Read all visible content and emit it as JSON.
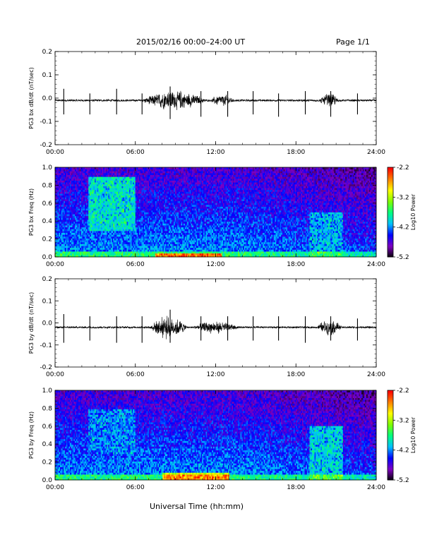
{
  "header": {
    "title": "2015/02/16  00:00–24:00 UT",
    "page": "Page 1/1"
  },
  "xaxis_title": "Universal Time (hh:mm)",
  "chart_data": [
    {
      "type": "line",
      "ylabel": "PG3 bx dB/dt (nT/sec)",
      "xlim": [
        0,
        24
      ],
      "ylim": [
        -0.2,
        0.2
      ],
      "x_ticks": [
        "00:00",
        "06:00",
        "12:00",
        "18:00",
        "24:00"
      ],
      "y_ticks": [
        "0.2",
        "0.1",
        "0.0",
        "-0.1",
        "-0.2"
      ],
      "baseline": -0.01,
      "spikes": [
        {
          "t": 0.65,
          "up": 0.04,
          "down": -0.07
        },
        {
          "t": 2.6,
          "up": 0.02,
          "down": -0.07
        },
        {
          "t": 4.6,
          "up": 0.04,
          "down": -0.07
        },
        {
          "t": 6.5,
          "up": 0.02,
          "down": -0.07
        },
        {
          "t": 8.6,
          "up": 0.05,
          "down": -0.09
        },
        {
          "t": 10.9,
          "up": 0.03,
          "down": -0.08
        },
        {
          "t": 12.9,
          "up": 0.03,
          "down": -0.08
        },
        {
          "t": 14.8,
          "up": 0.03,
          "down": -0.07
        },
        {
          "t": 16.7,
          "up": 0.02,
          "down": -0.08
        },
        {
          "t": 18.7,
          "up": 0.03,
          "down": -0.07
        },
        {
          "t": 20.6,
          "up": 0.03,
          "down": -0.08
        },
        {
          "t": 22.6,
          "up": 0.02,
          "down": -0.07
        }
      ],
      "activity": [
        {
          "t0": 6.3,
          "t1": 11.5,
          "amp": 0.04
        },
        {
          "t0": 11.5,
          "t1": 13.5,
          "amp": 0.025
        },
        {
          "t0": 19.7,
          "t1": 21.3,
          "amp": 0.03
        }
      ],
      "peak_range": [
        -0.09,
        0.07
      ]
    },
    {
      "type": "heatmap",
      "ylabel": "PG3 bx Freq (Hz)",
      "xlim": [
        0,
        24
      ],
      "ylim": [
        0.0,
        1.0
      ],
      "x_ticks": [
        "00:00",
        "06:00",
        "12:00",
        "18:00",
        "24:00"
      ],
      "y_ticks": [
        "1.0",
        "0.8",
        "0.6",
        "0.4",
        "0.2",
        "0.0"
      ],
      "colorbar": {
        "label": "Log10 Power",
        "range": [
          -5.2,
          -2.2
        ],
        "ticks": [
          "-2.2",
          "-3.2",
          "-4.2",
          "-5.2"
        ],
        "colors": [
          "#000000",
          "#8000c0",
          "#0000ff",
          "#00c0ff",
          "#00ff80",
          "#80ff00",
          "#ffff00",
          "#ff8000",
          "#ff0000"
        ]
      },
      "regions": [
        {
          "t0": 2.5,
          "t1": 6.0,
          "f0": 0.3,
          "f1": 0.9,
          "level": -3.7
        },
        {
          "t0": 7.5,
          "t1": 12.5,
          "f0": 0.0,
          "f1": 0.05,
          "level": -2.8
        },
        {
          "t0": 19.0,
          "t1": 21.5,
          "f0": 0.0,
          "f1": 0.5,
          "level": -3.9
        }
      ]
    },
    {
      "type": "line",
      "ylabel": "PG3 by dB/dt (nT/sec)",
      "xlim": [
        0,
        24
      ],
      "ylim": [
        -0.2,
        0.2
      ],
      "x_ticks": [
        "00:00",
        "06:00",
        "12:00",
        "18:00",
        "24:00"
      ],
      "y_ticks": [
        "0.2",
        "0.1",
        "0.0",
        "-0.1",
        "-0.2"
      ],
      "baseline": -0.02,
      "spikes": [
        {
          "t": 0.65,
          "up": 0.04,
          "down": -0.09
        },
        {
          "t": 2.6,
          "up": 0.03,
          "down": -0.08
        },
        {
          "t": 4.6,
          "up": 0.03,
          "down": -0.09
        },
        {
          "t": 6.5,
          "up": 0.03,
          "down": -0.09
        },
        {
          "t": 8.6,
          "up": 0.06,
          "down": -0.09
        },
        {
          "t": 10.9,
          "up": 0.03,
          "down": -0.08
        },
        {
          "t": 12.9,
          "up": 0.03,
          "down": -0.08
        },
        {
          "t": 14.8,
          "up": 0.03,
          "down": -0.08
        },
        {
          "t": 16.7,
          "up": 0.03,
          "down": -0.08
        },
        {
          "t": 18.7,
          "up": 0.03,
          "down": -0.09
        },
        {
          "t": 20.6,
          "up": 0.03,
          "down": -0.08
        },
        {
          "t": 22.6,
          "up": 0.02,
          "down": -0.08
        }
      ],
      "activity": [
        {
          "t0": 7.0,
          "t1": 10.0,
          "amp": 0.05
        },
        {
          "t0": 10.0,
          "t1": 14.0,
          "amp": 0.025
        },
        {
          "t0": 19.5,
          "t1": 21.5,
          "amp": 0.035
        }
      ],
      "peak_range": [
        -0.09,
        0.07
      ]
    },
    {
      "type": "heatmap",
      "ylabel": "PG3 by Freq (Hz)",
      "xlim": [
        0,
        24
      ],
      "ylim": [
        0.0,
        1.0
      ],
      "x_ticks": [
        "00:00",
        "06:00",
        "12:00",
        "18:00",
        "24:00"
      ],
      "y_ticks": [
        "1.0",
        "0.8",
        "0.6",
        "0.4",
        "0.2",
        "0.0"
      ],
      "colorbar": {
        "label": "Log10 Power",
        "range": [
          -5.2,
          -2.2
        ],
        "ticks": [
          "-2.2",
          "-3.2",
          "-4.2",
          "-5.2"
        ],
        "colors": [
          "#000000",
          "#8000c0",
          "#0000ff",
          "#00c0ff",
          "#00ff80",
          "#80ff00",
          "#ffff00",
          "#ff8000",
          "#ff0000"
        ]
      },
      "regions": [
        {
          "t0": 2.5,
          "t1": 6.0,
          "f0": 0.3,
          "f1": 0.8,
          "level": -4.0
        },
        {
          "t0": 8.0,
          "t1": 13.0,
          "f0": 0.0,
          "f1": 0.08,
          "level": -2.9
        },
        {
          "t0": 19.0,
          "t1": 21.5,
          "f0": 0.0,
          "f1": 0.6,
          "level": -3.8
        }
      ]
    }
  ]
}
